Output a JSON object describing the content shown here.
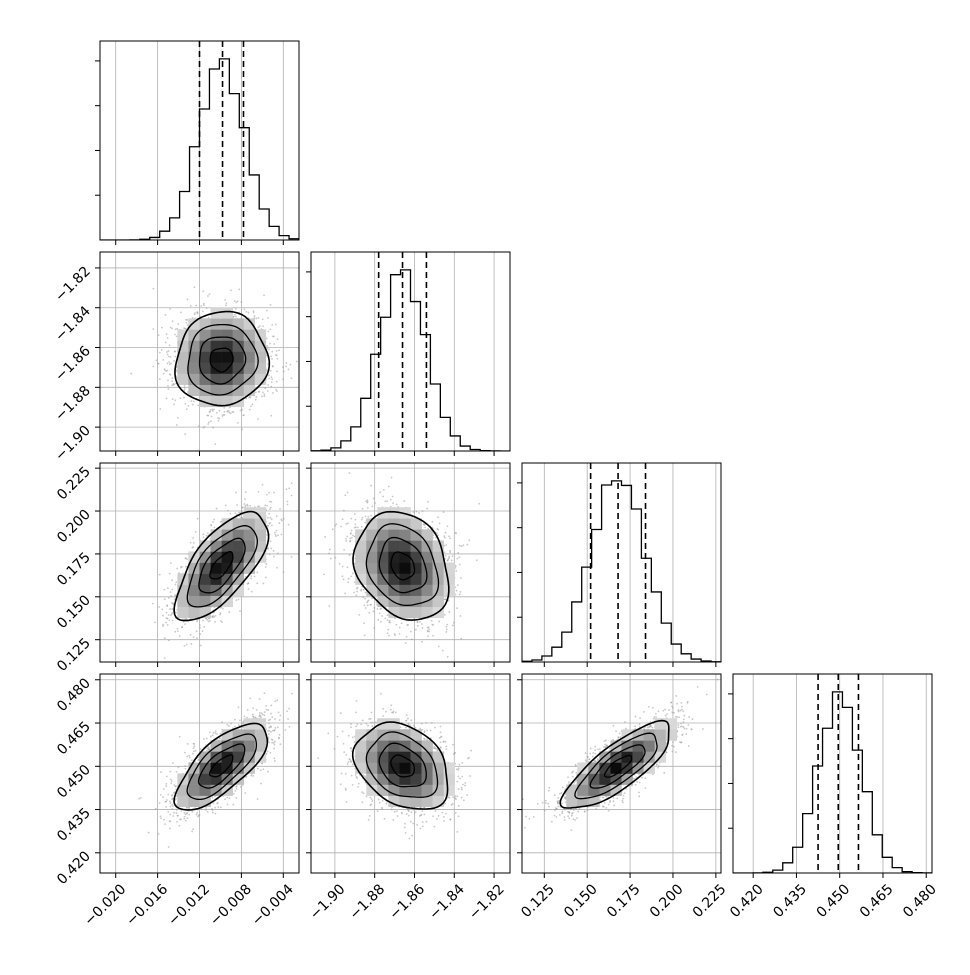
{
  "chart_data": {
    "type": "corner",
    "parameters": [
      {
        "id": "p0",
        "range": [
          -0.0215,
          -0.0025
        ],
        "ticks": [
          -0.02,
          -0.016,
          -0.012,
          -0.008,
          -0.004
        ],
        "tick_labels": [
          "−0.020",
          "−0.016",
          "−0.012",
          "−0.008",
          "−0.004"
        ],
        "mean": -0.0099,
        "sd": 0.0022,
        "quantiles": [
          -0.012,
          -0.0098,
          -0.0078
        ]
      },
      {
        "id": "p1",
        "range": [
          -1.912,
          -1.812
        ],
        "ticks": [
          -1.9,
          -1.88,
          -1.86,
          -1.84,
          -1.82
        ],
        "tick_labels": [
          "−1.90",
          "−1.88",
          "−1.86",
          "−1.84",
          "−1.82"
        ],
        "mean": -1.866,
        "sd": 0.0118,
        "quantiles": [
          -1.878,
          -1.866,
          -1.854
        ]
      },
      {
        "id": "p2",
        "range": [
          0.112,
          0.228
        ],
        "ticks": [
          0.125,
          0.15,
          0.175,
          0.2,
          0.225
        ],
        "tick_labels": [
          "0.125",
          "0.150",
          "0.175",
          "0.200",
          "0.225"
        ],
        "mean": 0.168,
        "sd": 0.0158,
        "quantiles": [
          0.152,
          0.168,
          0.184
        ]
      },
      {
        "id": "p3",
        "range": [
          0.413,
          0.482
        ],
        "ticks": [
          0.42,
          0.435,
          0.45,
          0.465,
          0.48
        ],
        "tick_labels": [
          "0.420",
          "0.435",
          "0.450",
          "0.465",
          "0.480"
        ],
        "mean": 0.45,
        "sd": 0.0075,
        "quantiles": [
          0.4425,
          0.4495,
          0.4565
        ]
      }
    ],
    "correlations": [
      {
        "i": 1,
        "j": 0,
        "rho": 0.05
      },
      {
        "i": 2,
        "j": 0,
        "rho": 0.68
      },
      {
        "i": 2,
        "j": 1,
        "rho": -0.22
      },
      {
        "i": 3,
        "j": 0,
        "rho": 0.72
      },
      {
        "i": 3,
        "j": 1,
        "rho": -0.3
      },
      {
        "i": 3,
        "j": 2,
        "rho": 0.8
      }
    ],
    "histogram_bins": 20,
    "contour_levels_sigma": [
      0.5,
      1.0,
      1.5,
      2.0
    ],
    "grid": true,
    "colors": {
      "ink": "#000000",
      "points": "#9a9a9a",
      "grid": "#b0b0b0",
      "background": "#ffffff"
    }
  }
}
